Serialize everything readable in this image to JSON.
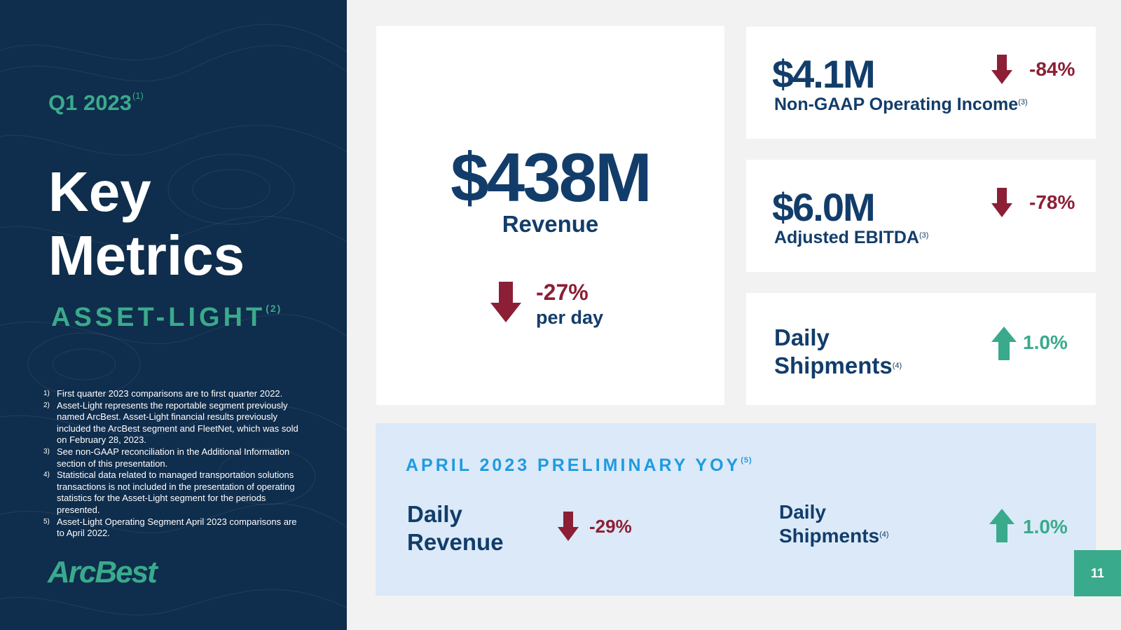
{
  "left": {
    "quarter": "Q1 2023",
    "quarter_note": "(1)",
    "title_line1": "Key",
    "title_line2": "Metrics",
    "segment": "ASSET-LIGHT",
    "segment_note": "(2)",
    "footnotes": [
      {
        "num": "1)",
        "text": "First quarter 2023 comparisons are to first quarter 2022."
      },
      {
        "num": "2)",
        "text": "Asset-Light represents the reportable segment previously named ArcBest. Asset-Light financial results previously included the ArcBest segment and FleetNet, which was sold on February 28, 2023."
      },
      {
        "num": "3)",
        "text": "See non-GAAP reconciliation in the Additional Information section of this presentation."
      },
      {
        "num": "4)",
        "text": "Statistical data related to managed transportation solutions transactions is not included in the presentation of operating statistics for the Asset-Light segment for the periods presented."
      },
      {
        "num": "5)",
        "text": "Asset-Light Operating Segment April 2023 comparisons are to April 2022."
      }
    ],
    "logo": "ArcBest"
  },
  "revenue": {
    "value": "$438M",
    "label": "Revenue",
    "change": "-27%",
    "change_unit": "per day",
    "direction": "down-arrow-icon"
  },
  "metrics": [
    {
      "value": "$4.1M",
      "label": "Non-GAAP Operating Income",
      "note": "(3)",
      "change": "-84%",
      "direction": "down-arrow-icon"
    },
    {
      "value": "$6.0M",
      "label": "Adjusted EBITDA",
      "note": "(3)",
      "change": "-78%",
      "direction": "down-arrow-icon"
    },
    {
      "label_line1": "Daily",
      "label_line2": "Shipments",
      "note": "(4)",
      "change": "1.0%",
      "direction": "up-arrow-icon"
    }
  ],
  "preliminary": {
    "heading": "APRIL 2023 PRELIMINARY YOY",
    "heading_note": "(5)",
    "daily_revenue": {
      "label_line1": "Daily",
      "label_line2": "Revenue",
      "change": "-29%"
    },
    "daily_shipments": {
      "label_line1": "Daily",
      "label_line2": "Shipments",
      "note": "(4)",
      "change": "1.0%"
    }
  },
  "page_number": "11",
  "colors": {
    "navy": "#0f2d4c",
    "dark_blue_text": "#123d6a",
    "teal": "#3aaa8c",
    "decline_red": "#8c1f35",
    "light_blue_bg": "#dbe9f8",
    "heading_blue": "#1e9be0"
  }
}
